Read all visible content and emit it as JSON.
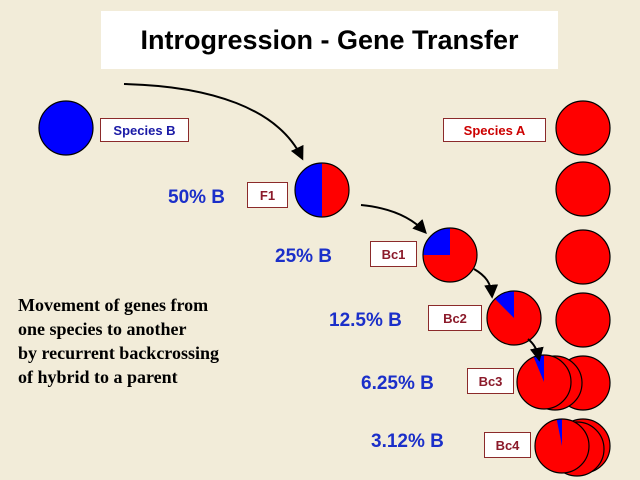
{
  "title": "Introgression - Gene Transfer",
  "labels": {
    "species_b": "Species B",
    "species_a": "Species  A",
    "f1": "F1",
    "bc1": "Bc1",
    "bc2": "Bc2",
    "bc3": "Bc3",
    "bc4": "Bc4"
  },
  "percentages": {
    "f1": "50% B",
    "bc1": "25% B",
    "bc2": "12.5% B",
    "bc3": "6.25% B",
    "bc4": "3.12% B"
  },
  "description": [
    "Movement of genes from",
    "one species to another",
    "by recurrent backcrossing",
    "of hybrid to a parent"
  ],
  "generations": [
    {
      "name": "F1",
      "fraction_b": 0.5
    },
    {
      "name": "Bc1",
      "fraction_b": 0.25
    },
    {
      "name": "Bc2",
      "fraction_b": 0.125
    },
    {
      "name": "Bc3",
      "fraction_b": 0.0625
    },
    {
      "name": "Bc4",
      "fraction_b": 0.0312
    }
  ],
  "colors": {
    "species_a": "#ff0000",
    "species_b": "#0000ff",
    "label_text_b": "#1a1aa6",
    "label_text_a": "#cc0000",
    "label_text_bc": "#8b1a2a",
    "percent_text": "#1b2fc9"
  }
}
